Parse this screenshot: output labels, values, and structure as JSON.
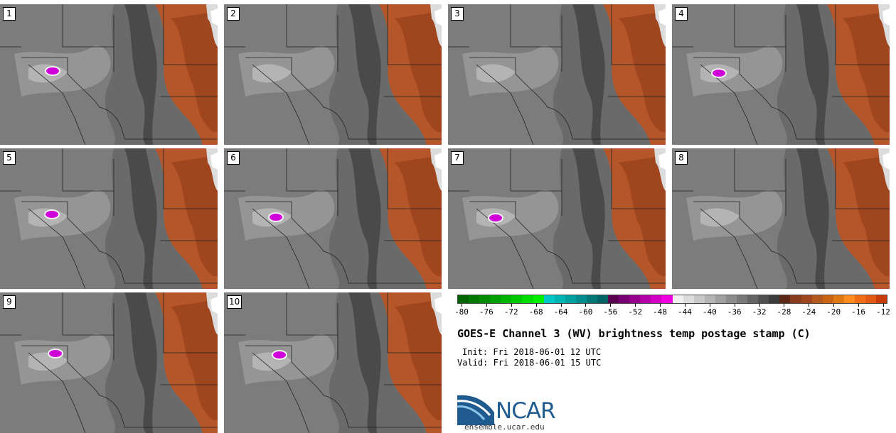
{
  "stamps": [
    {
      "label": "1",
      "cold_core": true
    },
    {
      "label": "2",
      "cold_core": false
    },
    {
      "label": "3",
      "cold_core": false
    },
    {
      "label": "4",
      "cold_core": true
    },
    {
      "label": "5",
      "cold_core": true
    },
    {
      "label": "6",
      "cold_core": true
    },
    {
      "label": "7",
      "cold_core": true
    },
    {
      "label": "8",
      "cold_core": false
    },
    {
      "label": "9",
      "cold_core": true
    },
    {
      "label": "10",
      "cold_core": true
    }
  ],
  "colorbar": {
    "colors": [
      "#006400",
      "#007800",
      "#008c00",
      "#00a000",
      "#00b400",
      "#00c800",
      "#00dc00",
      "#00f000",
      "#00c8c8",
      "#00b4b4",
      "#00a0a0",
      "#008c8c",
      "#007878",
      "#006464",
      "#5a0050",
      "#780070",
      "#96008c",
      "#b400a8",
      "#d200c4",
      "#f000e0",
      "#f0f0f0",
      "#dcdcdc",
      "#c8c8c8",
      "#b4b4b4",
      "#a0a0a0",
      "#8c8c8c",
      "#787878",
      "#646464",
      "#505050",
      "#3c3c3c",
      "#5a2814",
      "#8c3c1e",
      "#a0461e",
      "#b45a1e",
      "#c86414",
      "#e07814",
      "#ff8c1e",
      "#f06e14",
      "#e05a14",
      "#c83c0a"
    ],
    "tick_labels": [
      "-80",
      "-76",
      "-72",
      "-68",
      "-64",
      "-60",
      "-56",
      "-52",
      "-48",
      "-44",
      "-40",
      "-36",
      "-32",
      "-28",
      "-24",
      "-20",
      "-16",
      "-12"
    ]
  },
  "title": "GOES-E Channel 3 (WV) brightness temp postage stamp (C)",
  "init": "Init: Fri 2018-06-01 12 UTC",
  "valid": "Valid: Fri 2018-06-01 15 UTC",
  "logo": {
    "text": "NCAR",
    "url": "ensemble.ucar.edu"
  }
}
